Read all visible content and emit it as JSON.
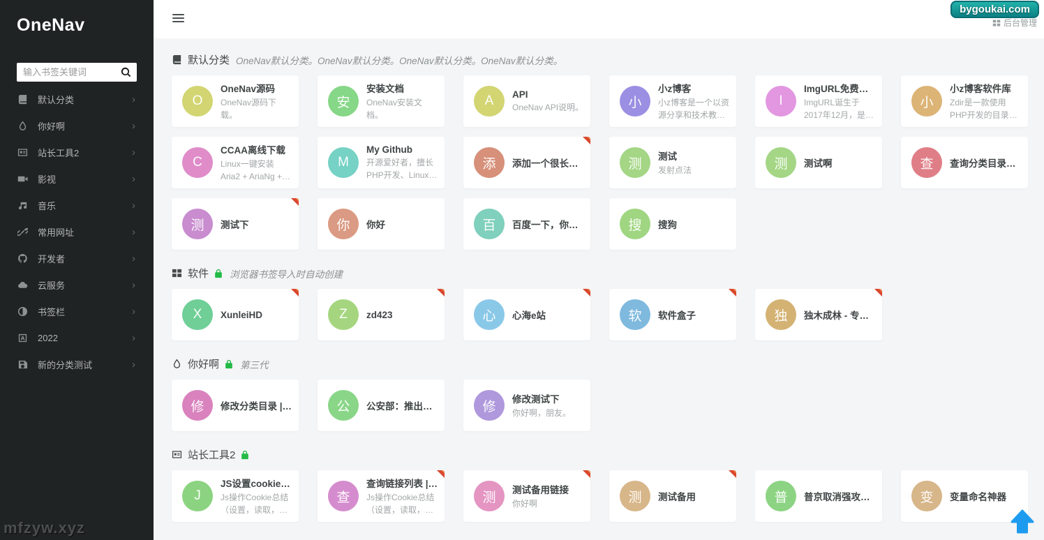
{
  "colors": {
    "badge_top": "#23b3ab",
    "badge_bottom": "#0c8184",
    "lock_green": "#21ba45",
    "corner_red": "#d9472e",
    "backtop_blue": "#1e9bef"
  },
  "sidebar": {
    "logo": "OneNav",
    "search_placeholder": "输入书签关键词",
    "items": [
      {
        "label": "默认分类",
        "icon": "book-icon"
      },
      {
        "label": "你好啊",
        "icon": "drop-icon"
      },
      {
        "label": "站长工具2",
        "icon": "card-icon"
      },
      {
        "label": "影视",
        "icon": "video-icon"
      },
      {
        "label": "音乐",
        "icon": "music-icon"
      },
      {
        "label": "常用网址",
        "icon": "link-icon"
      },
      {
        "label": "开发者",
        "icon": "github-icon"
      },
      {
        "label": "云服务",
        "icon": "cloud-icon"
      },
      {
        "label": "书签栏",
        "icon": "adjust-icon"
      },
      {
        "label": "2022",
        "icon": "font-icon"
      },
      {
        "label": "新的分类测试",
        "icon": "save-icon"
      }
    ],
    "watermark": "mfzyw.xyz"
  },
  "topbar": {
    "badge": "bygoukai.com",
    "admin_link": "后台管理"
  },
  "sections": [
    {
      "title": "默认分类",
      "icon": "book-icon",
      "locked": false,
      "description": "OneNav默认分类。OneNav默认分类。OneNav默认分类。OneNav默认分类。",
      "cards": [
        {
          "title": "OneNav源码",
          "description": "OneNav源码下载。",
          "avatar_char": "O",
          "avatar_color": "#d2d572",
          "private": false
        },
        {
          "title": "安装文档",
          "description": "OneNav安装文档。",
          "avatar_char": "安",
          "avatar_color": "#86d787",
          "private": false
        },
        {
          "title": "API",
          "description": "OneNav API说明。",
          "avatar_char": "A",
          "avatar_color": "#d2d572",
          "private": false
        },
        {
          "title": "小z博客",
          "description": "小z博客是一个以资源分享和技术教程为主的…",
          "avatar_char": "小",
          "avatar_color": "#9b8fe3",
          "private": false
        },
        {
          "title": "ImgURL免费图床",
          "description": "ImgURL诞生于2017年12月，是一款开源图…",
          "avatar_char": "I",
          "avatar_color": "#e297e0",
          "private": false
        },
        {
          "title": "小z博客软件库",
          "description": "Zdir是一款使用PHP开发的目录列表程序。",
          "avatar_char": "小",
          "avatar_color": "#dcb476",
          "private": false
        },
        {
          "title": "CCAA离线下载",
          "description": "Linux一键安装Aria2 + AriaNg + FileBrowse…",
          "avatar_char": "C",
          "avatar_color": "#df8cc9",
          "private": false
        },
        {
          "title": "My Github",
          "description": "开源爱好者，擅长PHP开发、Linux运维。",
          "avatar_char": "M",
          "avatar_color": "#75d2c5",
          "private": false
        },
        {
          "title": "添加一个很长的私有链…",
          "description": "",
          "avatar_char": "添",
          "avatar_color": "#d79079",
          "private": true
        },
        {
          "title": "测试",
          "description": "发射点法",
          "avatar_char": "测",
          "avatar_color": "#a4d685",
          "private": false
        },
        {
          "title": "测试啊",
          "description": "",
          "avatar_char": "测",
          "avatar_color": "#a4d685",
          "private": false
        },
        {
          "title": "查询分类目录列表 | 藏经阁",
          "description": "",
          "avatar_char": "查",
          "avatar_color": "#df7e87",
          "private": false
        },
        {
          "title": "测试下",
          "description": "",
          "avatar_char": "测",
          "avatar_color": "#c88ccf",
          "private": true
        },
        {
          "title": "你好",
          "description": "",
          "avatar_char": "你",
          "avatar_color": "#db9a83",
          "private": false
        },
        {
          "title": "百度一下，你就知道",
          "description": "",
          "avatar_char": "百",
          "avatar_color": "#7fd0bc",
          "private": false
        },
        {
          "title": "搜狗",
          "description": "",
          "avatar_char": "搜",
          "avatar_color": "#a0d682",
          "private": false
        }
      ]
    },
    {
      "title": "软件",
      "icon": "grid-icon",
      "locked": true,
      "description": "浏览器书签导入时自动创建",
      "cards": [
        {
          "title": "XunleiHD",
          "description": "",
          "avatar_char": "X",
          "avatar_color": "#6fcf97",
          "private": true
        },
        {
          "title": "zd423",
          "description": "",
          "avatar_char": "Z",
          "avatar_color": "#a5d67f",
          "private": true
        },
        {
          "title": "心海e站",
          "description": "",
          "avatar_char": "心",
          "avatar_color": "#8ac8e8",
          "private": true
        },
        {
          "title": "软件盒子",
          "description": "",
          "avatar_char": "软",
          "avatar_color": "#7fb9de",
          "private": true
        },
        {
          "title": "独木成林 - 专注软件分…",
          "description": "",
          "avatar_char": "独",
          "avatar_color": "#d3b274",
          "private": true
        }
      ]
    },
    {
      "title": "你好啊",
      "icon": "drop-icon",
      "locked": true,
      "description": "第三代",
      "cards": [
        {
          "title": "修改分类目录 | 藏经阁",
          "description": "",
          "avatar_char": "修",
          "avatar_color": "#d982bd",
          "private": false
        },
        {
          "title": "公安部：推出六项便民…",
          "description": "",
          "avatar_char": "公",
          "avatar_color": "#8ad688",
          "private": false
        },
        {
          "title": "修改测试下",
          "description": "你好啊，朋友。",
          "avatar_char": "修",
          "avatar_color": "#b098dd",
          "private": false
        }
      ]
    },
    {
      "title": "站长工具2",
      "icon": "card-icon",
      "locked": true,
      "description": "",
      "cards": [
        {
          "title": "JS设置cookie、读取…",
          "description": "Js操作Cookie总结（设置，读取，删除），…",
          "avatar_char": "J",
          "avatar_color": "#8cd381",
          "private": false
        },
        {
          "title": "查询链接列表 | 藏经阁",
          "description": "Js操作Cookie总结（设置，读取，删除），…",
          "avatar_char": "查",
          "avatar_color": "#d58cce",
          "private": true
        },
        {
          "title": "测试备用链接",
          "description": "你好啊",
          "avatar_char": "测",
          "avatar_color": "#e495c2",
          "private": true
        },
        {
          "title": "测试备用",
          "description": "",
          "avatar_char": "测",
          "avatar_color": "#d7b689",
          "private": true
        },
        {
          "title": "普京取消强攻亚速钢铁…",
          "description": "",
          "avatar_char": "普",
          "avatar_color": "#8cd483",
          "private": false
        },
        {
          "title": "变量命名神器",
          "description": "",
          "avatar_char": "变",
          "avatar_color": "#d7b689",
          "private": false
        }
      ]
    }
  ]
}
